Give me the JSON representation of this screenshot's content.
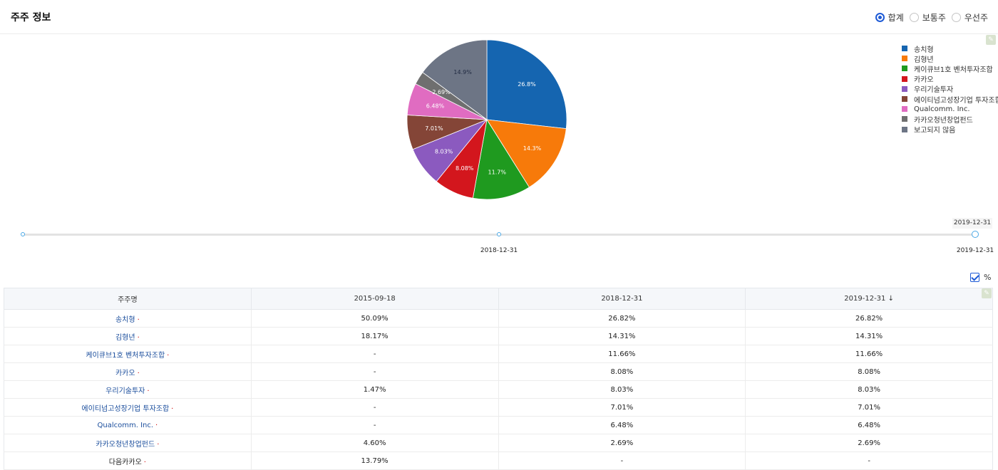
{
  "header": {
    "title": "주주 정보",
    "radios": [
      {
        "label": "합계",
        "selected": true
      },
      {
        "label": "보통주",
        "selected": false
      },
      {
        "label": "우선주",
        "selected": false
      }
    ]
  },
  "chart_data": {
    "type": "pie",
    "slices": [
      {
        "label": "송치형",
        "value": 26.8,
        "display": "26.8%",
        "color": "#1565b0"
      },
      {
        "label": "김형년",
        "value": 14.3,
        "display": "14.3%",
        "color": "#f77a0a"
      },
      {
        "label": "케이큐브1호 벤처투자조합",
        "value": 11.7,
        "display": "11.7%",
        "color": "#1f9a1f"
      },
      {
        "label": "카카오",
        "value": 8.08,
        "display": "8.08%",
        "color": "#d3161d"
      },
      {
        "label": "우리기술투자",
        "value": 8.03,
        "display": "8.03%",
        "color": "#8b5abf"
      },
      {
        "label": "에이티넘고성장기업 투자조합",
        "value": 7.01,
        "display": "7.01%",
        "color": "#844537"
      },
      {
        "label": "Qualcomm. Inc.",
        "value": 6.48,
        "display": "6.48%",
        "color": "#e06cc1"
      },
      {
        "label": "카카오청년창업펀드",
        "value": 2.69,
        "display": "2.69%",
        "color": "#6f6f6f"
      },
      {
        "label": "보고되지 않음",
        "value": 14.9,
        "display": "14.9%",
        "color": "#6d7585"
      }
    ],
    "legend_position": "top-right"
  },
  "timeline": {
    "tooltip": "2019-12-31",
    "labels": [
      "2018-12-31",
      "2019-12-31"
    ]
  },
  "percent_toggle": {
    "label": "%",
    "checked": true
  },
  "table": {
    "headers": [
      "주주명",
      "2015-09-18",
      "2018-12-31",
      "2019-12-31 ↓"
    ],
    "rows": [
      {
        "name": "송치형",
        "dot": "·",
        "link": true,
        "values": [
          "50.09%",
          "26.82%",
          "26.82%"
        ]
      },
      {
        "name": "김형년",
        "dot": "·",
        "link": true,
        "values": [
          "18.17%",
          "14.31%",
          "14.31%"
        ]
      },
      {
        "name": "케이큐브1호 벤처투자조합",
        "dot": "·",
        "link": true,
        "values": [
          "-",
          "11.66%",
          "11.66%"
        ]
      },
      {
        "name": "카카오",
        "dot": "·",
        "link": true,
        "values": [
          "-",
          "8.08%",
          "8.08%"
        ]
      },
      {
        "name": "우리기술투자",
        "dot": "·",
        "link": true,
        "values": [
          "1.47%",
          "8.03%",
          "8.03%"
        ]
      },
      {
        "name": "에이티넘고성장기업 투자조합",
        "dot": "·",
        "link": true,
        "values": [
          "-",
          "7.01%",
          "7.01%"
        ]
      },
      {
        "name": "Qualcomm. Inc.",
        "dot": "·",
        "link": true,
        "values": [
          "-",
          "6.48%",
          "6.48%"
        ]
      },
      {
        "name": "카카오청년창업펀드",
        "dot": "·",
        "link": true,
        "values": [
          "4.60%",
          "2.69%",
          "2.69%"
        ]
      },
      {
        "name": "다음카카오",
        "dot": "·",
        "link": false,
        "values": [
          "13.79%",
          "-",
          "-"
        ]
      }
    ]
  }
}
